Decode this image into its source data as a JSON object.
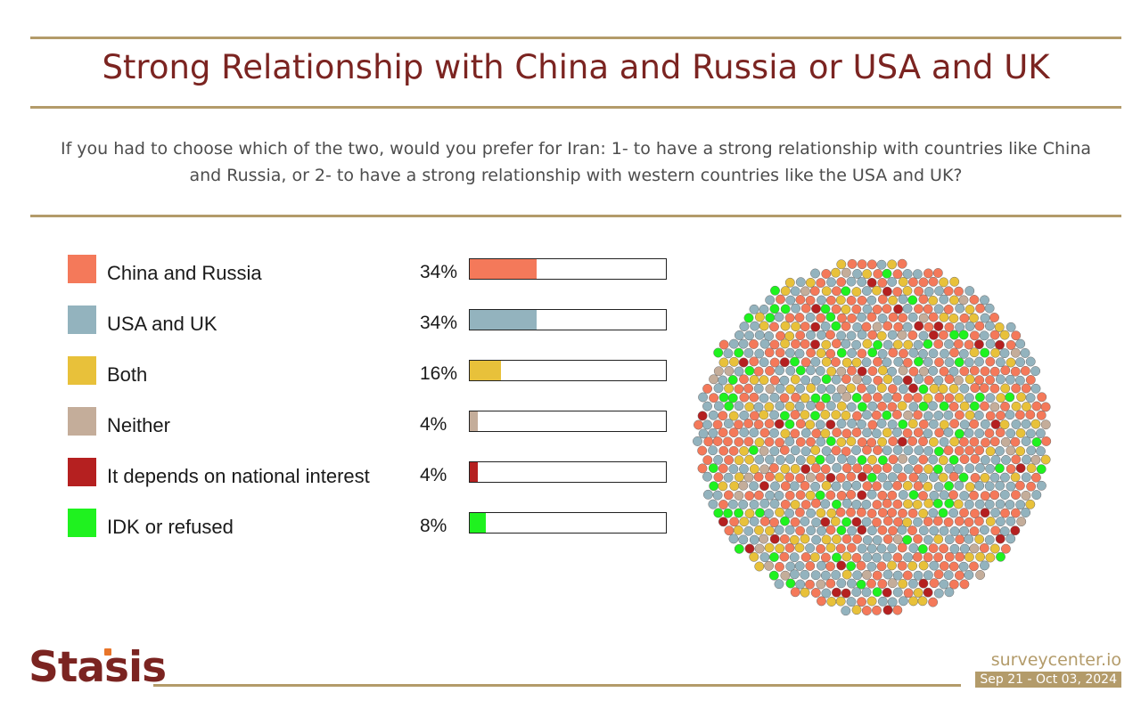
{
  "chart_data": {
    "type": "bar",
    "title": "Strong Relationship with China and Russia or USA and UK",
    "subtitle": "If you had to choose which of the two, would you prefer for Iran: 1- to have a strong relationship with countries like China and Russia, or 2- to have a strong relationship with western countries like the USA and UK?",
    "categories": [
      "China and Russia",
      "USA and UK",
      "Both",
      "Neither",
      "It depends on national interest",
      "IDK or refused"
    ],
    "values": [
      34,
      34,
      16,
      4,
      4,
      8
    ],
    "value_labels": [
      "34%",
      "34%",
      "16%",
      "4%",
      "4%",
      "8%"
    ],
    "colors": [
      "#f4795a",
      "#93b3be",
      "#e8c13a",
      "#c4ad9a",
      "#b52020",
      "#1ff21f"
    ],
    "xlim": [
      0,
      100
    ],
    "unit": "%"
  },
  "brand": {
    "logo_text": "Stasis"
  },
  "footer": {
    "source": "surveycenter.io",
    "dates": "Sep 21 - Oct 03, 2024"
  }
}
